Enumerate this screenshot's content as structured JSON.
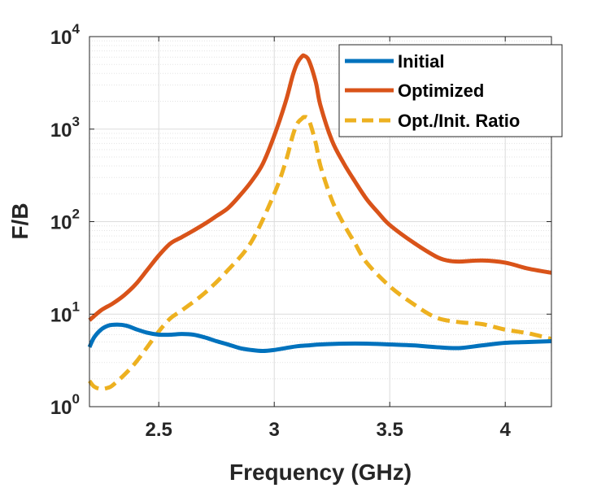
{
  "chart_data": {
    "type": "line",
    "xlabel": "Frequency (GHz)",
    "ylabel": "F/B",
    "xlim": [
      2.2,
      4.2
    ],
    "ylim": [
      1,
      10000
    ],
    "yscale": "log",
    "grid": true,
    "legend_position": "top-right",
    "x_ticks": [
      {
        "value": 2.5,
        "label": "2.5"
      },
      {
        "value": 3,
        "label": "3"
      },
      {
        "value": 3.5,
        "label": "3.5"
      },
      {
        "value": 4,
        "label": "4"
      }
    ],
    "y_ticks": [
      {
        "value": 1,
        "base": "10",
        "exp": "0"
      },
      {
        "value": 10,
        "base": "10",
        "exp": "1"
      },
      {
        "value": 100,
        "base": "10",
        "exp": "2"
      },
      {
        "value": 1000,
        "base": "10",
        "exp": "3"
      },
      {
        "value": 10000,
        "base": "10",
        "exp": "4"
      }
    ],
    "series": [
      {
        "name": "Initial",
        "color": "#0072BD",
        "dashed": false,
        "x": [
          2.2,
          2.22,
          2.25,
          2.28,
          2.32,
          2.36,
          2.4,
          2.45,
          2.5,
          2.55,
          2.6,
          2.65,
          2.7,
          2.75,
          2.8,
          2.85,
          2.9,
          2.95,
          3.0,
          3.05,
          3.1,
          3.15,
          3.2,
          3.3,
          3.4,
          3.5,
          3.6,
          3.7,
          3.8,
          3.9,
          4.0,
          4.1,
          4.2
        ],
        "y": [
          4.4,
          5.6,
          6.8,
          7.5,
          7.7,
          7.5,
          6.9,
          6.3,
          6.0,
          6.0,
          6.1,
          6.0,
          5.6,
          5.1,
          4.7,
          4.3,
          4.1,
          4.0,
          4.1,
          4.3,
          4.5,
          4.6,
          4.7,
          4.8,
          4.8,
          4.7,
          4.6,
          4.4,
          4.3,
          4.6,
          4.9,
          5.0,
          5.1
        ]
      },
      {
        "name": "Optimized",
        "color": "#D95319",
        "dashed": false,
        "x": [
          2.2,
          2.25,
          2.3,
          2.35,
          2.4,
          2.45,
          2.5,
          2.55,
          2.6,
          2.65,
          2.7,
          2.75,
          2.8,
          2.85,
          2.9,
          2.95,
          3.0,
          3.05,
          3.08,
          3.1,
          3.12,
          3.13,
          3.15,
          3.18,
          3.2,
          3.25,
          3.3,
          3.35,
          3.4,
          3.45,
          3.5,
          3.6,
          3.7,
          3.75,
          3.8,
          3.9,
          4.0,
          4.1,
          4.2
        ],
        "y": [
          8.6,
          11,
          13,
          16,
          21,
          30,
          43,
          58,
          68,
          80,
          95,
          115,
          140,
          190,
          270,
          420,
          850,
          2000,
          3800,
          5200,
          6100,
          6200,
          5500,
          3200,
          1800,
          750,
          430,
          270,
          175,
          125,
          92,
          60,
          42,
          38,
          37,
          38,
          36,
          31,
          28
        ]
      },
      {
        "name": "Opt./Init. Ratio",
        "color": "#EDB120",
        "dashed": true,
        "x": [
          2.2,
          2.22,
          2.25,
          2.28,
          2.3,
          2.35,
          2.4,
          2.45,
          2.5,
          2.55,
          2.6,
          2.7,
          2.8,
          2.9,
          3.0,
          3.05,
          3.08,
          3.1,
          3.12,
          3.13,
          3.15,
          3.18,
          3.2,
          3.25,
          3.3,
          3.35,
          3.4,
          3.5,
          3.6,
          3.7,
          3.8,
          3.9,
          4.0,
          4.1,
          4.2
        ],
        "y": [
          1.9,
          1.65,
          1.55,
          1.6,
          1.7,
          2.2,
          3.0,
          4.4,
          6.5,
          9.0,
          11,
          17,
          30,
          60,
          200,
          450,
          850,
          1150,
          1300,
          1350,
          1250,
          700,
          400,
          170,
          95,
          58,
          36,
          20,
          13,
          9.2,
          8.2,
          7.8,
          6.8,
          6.2,
          5.4
        ]
      }
    ]
  }
}
